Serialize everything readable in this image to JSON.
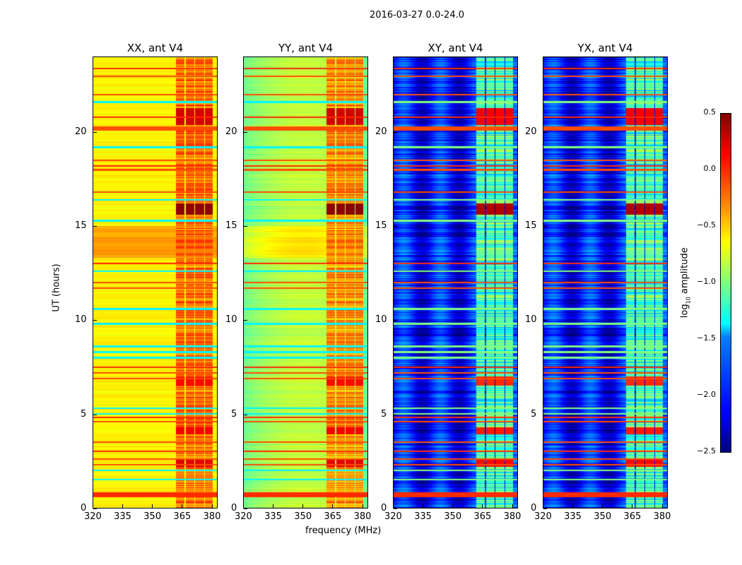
{
  "chart_data": {
    "type": "heatmap",
    "title": "2016-03-27 0.0-24.0",
    "xlabel": "frequency (MHz)",
    "ylabel": "UT (hours)",
    "xlim": [
      320,
      383
    ],
    "ylim": [
      0,
      24
    ],
    "xticks": [
      "320",
      "335",
      "350",
      "365",
      "380"
    ],
    "yticks": [
      "0",
      "5",
      "10",
      "15",
      "20"
    ],
    "colorbar": {
      "label": "log10 amplitude",
      "label_main": "log",
      "label_sub": "10",
      "label_tail": " amplitude",
      "range": [
        -2.5,
        0.5
      ],
      "ticks": [
        "0.5",
        "0.0",
        "−0.5",
        "−1.0",
        "−1.5",
        "−2.0",
        "−2.5"
      ],
      "colormap": "jet"
    },
    "panels": [
      {
        "title": "XX, ant V4",
        "base_level": -0.6,
        "band_level": -0.2
      },
      {
        "title": "YY, ant V4",
        "base_level": -0.8,
        "band_level": -0.3
      },
      {
        "title": "XY, ant V4",
        "base_level": -2.1,
        "band_level": -1.2
      },
      {
        "title": "YX, ant V4",
        "base_level": -2.1,
        "band_level": -1.2
      }
    ],
    "signal_band_mhz": [
      362,
      381
    ],
    "signal_subchannels_mhz": [
      [
        362,
        366.5
      ],
      [
        367,
        371.5
      ],
      [
        372,
        376.5
      ],
      [
        377,
        381
      ]
    ],
    "bright_interval_hours_xx_yy": [
      13.3,
      15.0
    ],
    "rfi_lines_hours": [
      0.7,
      2.3,
      2.6,
      3.0,
      3.5,
      4.6,
      4.8,
      6.9,
      7.2,
      7.5,
      11.7,
      12.0,
      13.0,
      16.8,
      18.0,
      18.2,
      18.5,
      20.2,
      20.8,
      22.0,
      23.0,
      23.4
    ],
    "quiet_lines_hours": [
      1.5,
      2.0,
      5.0,
      5.3,
      8.0,
      8.3,
      8.6,
      9.8,
      10.6,
      12.6,
      15.3,
      16.4,
      19.2,
      21.6
    ],
    "bursts_hours": [
      [
        15.6,
        16.2,
        0.45
      ],
      [
        20.4,
        21.3,
        0.25
      ],
      [
        2.2,
        2.6,
        0.2
      ],
      [
        6.5,
        7.0,
        0.1
      ],
      [
        3.9,
        4.3,
        0.15
      ]
    ]
  }
}
